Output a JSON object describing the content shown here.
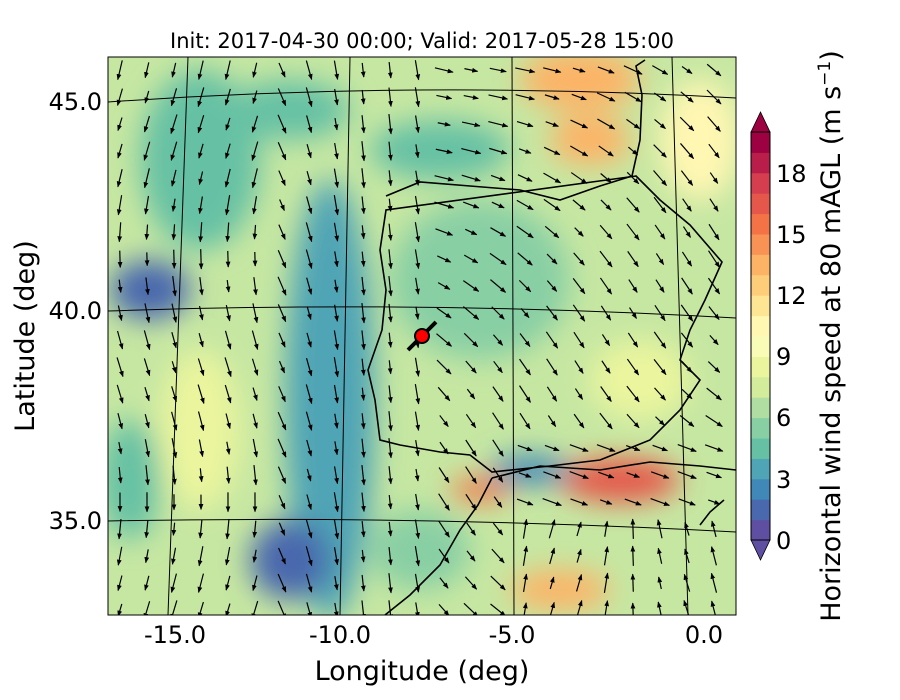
{
  "title": "Init: 2017-04-30 00:00; Valid: 2017-05-28 15:00",
  "chart_data": {
    "type": "heatmap",
    "subtype": "filled-contour map with wind vectors",
    "xlabel": "Longitude (deg)",
    "ylabel": "Latitude (deg)",
    "x_ticks": [
      "-15.0",
      "-10.0",
      "-5.0",
      "0.0"
    ],
    "y_ticks": [
      "45.0",
      "40.0",
      "35.0"
    ],
    "xlim": [
      -15.9,
      0.2
    ],
    "ylim": [
      32.8,
      46.1
    ],
    "colorbar": {
      "label": "Horizontal wind speed at 80 mAGL (m s$^{-1}$)",
      "label_text": "Horizontal wind speed at 80 mAGL (m s",
      "label_sup": "−1",
      "label_end": ")",
      "ticks": [
        "0",
        "3",
        "6",
        "9",
        "12",
        "15",
        "18"
      ],
      "range": [
        0,
        20
      ],
      "levels_step": 1,
      "extend": "both",
      "colormap": "Spectral_r",
      "colors": [
        "#5e4fa2",
        "#4a68ad",
        "#3f88b8",
        "#4fa4b5",
        "#66c1a4",
        "#88cfa4",
        "#b0dea2",
        "#d2ec9c",
        "#ebf59d",
        "#f9fcb6",
        "#fff7b2",
        "#fee593",
        "#fecd79",
        "#fdb366",
        "#f99355",
        "#f47346",
        "#e5574a",
        "#d43e4f",
        "#b91e4b",
        "#9e0142"
      ]
    },
    "marker": {
      "lon": -7.7,
      "lat": 39.4,
      "color": "#ff0000"
    },
    "grid": true
  }
}
